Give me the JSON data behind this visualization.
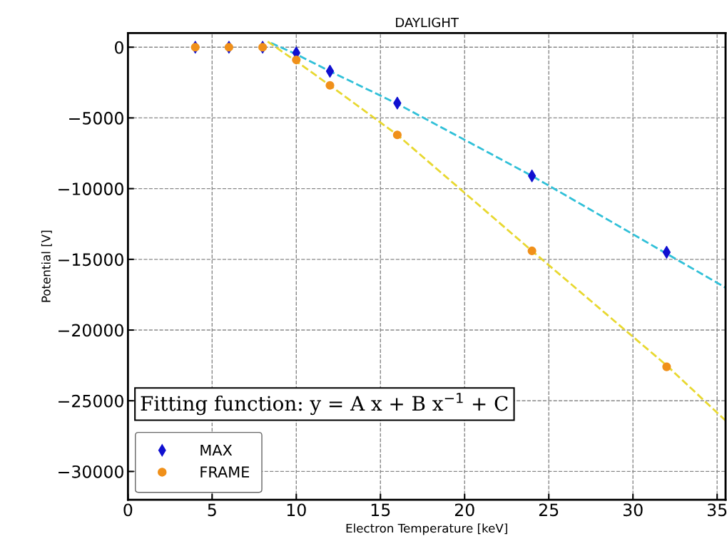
{
  "chart_data": {
    "type": "scatter",
    "title": "DAYLIGHT",
    "xlabel": "Electron Temperature [keV]",
    "ylabel": "Potential [V]",
    "xlim": [
      0,
      35.5
    ],
    "xticks": [
      0,
      5,
      10,
      15,
      20,
      25,
      30,
      35
    ],
    "ylim": [
      -32000,
      1000
    ],
    "yticks": [
      0,
      -5000,
      -10000,
      -15000,
      -20000,
      -25000,
      -30000
    ],
    "grid": true,
    "legend": "bottom left",
    "series": [
      {
        "type": "line",
        "color": "#30c0d8",
        "line_style": "dashed",
        "marker": "none",
        "x": [
          8.5,
          10,
          12,
          16,
          24,
          32,
          35.5
        ],
        "values": [
          300,
          -500,
          -1700,
          -4000,
          -9100,
          -14600,
          -17000
        ]
      },
      {
        "type": "line",
        "color": "#e8d830",
        "line_style": "dashed",
        "marker": "none",
        "x": [
          8.3,
          10,
          12,
          16,
          24,
          32,
          35.5
        ],
        "values": [
          400,
          -1000,
          -2700,
          -6200,
          -14400,
          -22500,
          -26400
        ]
      },
      {
        "name": "MAX",
        "color": "#1010d0",
        "marker": "diamond",
        "x": [
          4,
          6,
          8,
          10,
          12,
          16,
          24,
          32
        ],
        "values": [
          0,
          0,
          0,
          -400,
          -1700,
          -3950,
          -9100,
          -14500
        ]
      },
      {
        "name": "FRAME",
        "color": "#f0901a",
        "marker": "circle",
        "x": [
          4,
          6,
          8,
          10,
          12,
          16,
          24,
          32
        ],
        "values": [
          0,
          0,
          0,
          -900,
          -2700,
          -6200,
          -14400,
          -22600
        ]
      }
    ],
    "annotations": [
      "Fitting function: y = A x + B x$^{−1}$ + C"
    ]
  }
}
